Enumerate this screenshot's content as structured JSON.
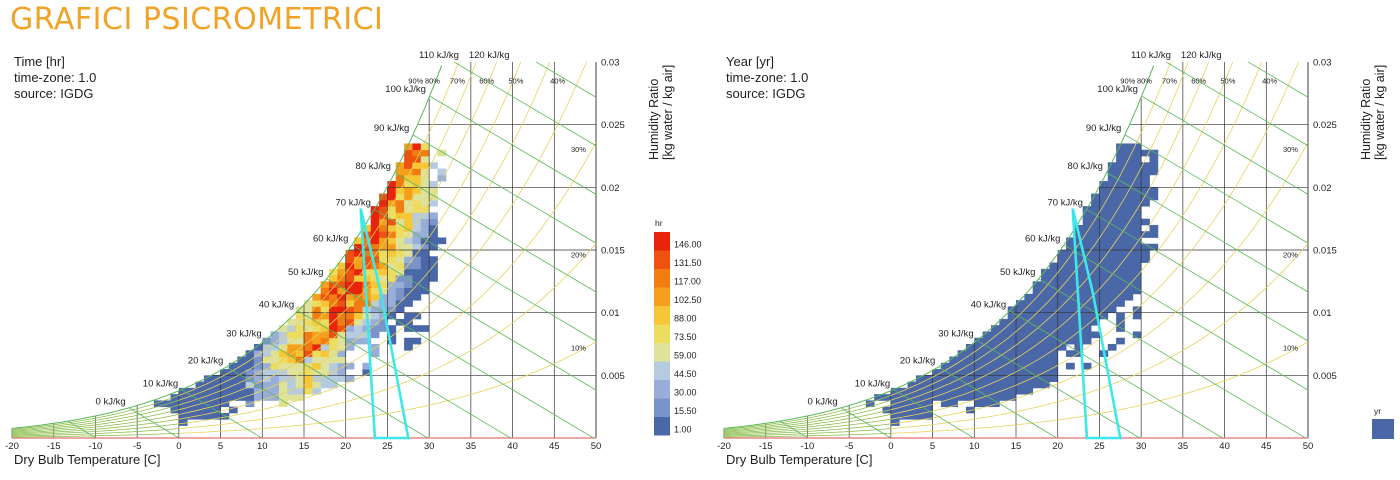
{
  "title": "GRAFICI PSICROMETRICI",
  "colors": {
    "title": "#f0a326",
    "enthalpy_lines": "#5cb85c",
    "rh_lines": "#e6d35a",
    "comfort_zone": "#3de8ea",
    "grid": "#333333",
    "data_blue": "#4a68a8"
  },
  "chart_data": [
    {
      "type": "heatmap",
      "panel": "left",
      "header_lines": [
        "Time [hr]",
        "time-zone: 1.0",
        "source: IGDG"
      ],
      "xlabel": "Dry Bulb Temperature [C]",
      "ylabel_lines": [
        "Humidity Ratio",
        "[kg water / kg air]"
      ],
      "xlim": [
        -20,
        50
      ],
      "ylim": [
        0,
        0.03
      ],
      "x_ticks": [
        "-20",
        "-15",
        "-10",
        "-5",
        "0",
        "5",
        "10",
        "15",
        "20",
        "25",
        "30",
        "35",
        "40",
        "45",
        "50"
      ],
      "y_ticks": [
        "0.005",
        "0.01",
        "0.015",
        "0.02",
        "0.025",
        "0.03"
      ],
      "enthalpy_labels": [
        "0 kJ/kg",
        "10 kJ/kg",
        "20 kJ/kg",
        "30 kJ/kg",
        "40 kJ/kg",
        "50 kJ/kg",
        "60 kJ/kg",
        "70 kJ/kg",
        "80 kJ/kg",
        "90 kJ/kg",
        "100 kJ/kg",
        "110 kJ/kg",
        "120 kJ/kg"
      ],
      "rh_labels": [
        "10%",
        "20%",
        "30%",
        "40%",
        "50%",
        "60%",
        "70%",
        "80%",
        "90%"
      ],
      "legend": {
        "title": "hr",
        "values": [
          "146.00",
          "131.50",
          "117.00",
          "102.50",
          "88.00",
          "73.50",
          "59.00",
          "44.50",
          "30.00",
          "15.50",
          "1.00"
        ],
        "colors": [
          "#e8240c",
          "#ee5210",
          "#f07c12",
          "#f4a01c",
          "#f6c634",
          "#ecdc60",
          "#dfe39a",
          "#b6cbe0",
          "#98aed8",
          "#7a93c8",
          "#4a68a8"
        ]
      },
      "comfort_zone": [
        [
          23.5,
          0
        ],
        [
          27.5,
          0
        ],
        [
          24.2,
          0.0116
        ],
        [
          21.8,
          0.0183
        ]
      ]
    },
    {
      "type": "heatmap",
      "panel": "right",
      "header_lines": [
        "Year [yr]",
        "time-zone: 1.0",
        "source: IGDG"
      ],
      "xlabel": "Dry Bulb Temperature [C]",
      "ylabel_lines": [
        "Humidity Ratio",
        "[kg water / kg air]"
      ],
      "xlim": [
        -20,
        50
      ],
      "ylim": [
        0,
        0.03
      ],
      "x_ticks": [
        "-20",
        "-15",
        "-10",
        "-5",
        "0",
        "5",
        "10",
        "15",
        "20",
        "25",
        "30",
        "35",
        "40",
        "45",
        "50"
      ],
      "y_ticks": [
        "0.005",
        "0.01",
        "0.015",
        "0.02",
        "0.025",
        "0.03"
      ],
      "enthalpy_labels": [
        "0 kJ/kg",
        "10 kJ/kg",
        "20 kJ/kg",
        "30 kJ/kg",
        "40 kJ/kg",
        "50 kJ/kg",
        "60 kJ/kg",
        "70 kJ/kg",
        "80 kJ/kg",
        "90 kJ/kg",
        "100 kJ/kg",
        "110 kJ/kg",
        "120 kJ/kg"
      ],
      "rh_labels": [
        "10%",
        "20%",
        "30%",
        "40%",
        "50%",
        "60%",
        "70%",
        "80%",
        "90%"
      ],
      "legend": {
        "title": "yr",
        "values": [],
        "colors": [
          "#4a68a8"
        ]
      },
      "comfort_zone": [
        [
          23.5,
          0
        ],
        [
          27.5,
          0
        ],
        [
          24.2,
          0.0116
        ],
        [
          21.8,
          0.0183
        ]
      ]
    }
  ]
}
